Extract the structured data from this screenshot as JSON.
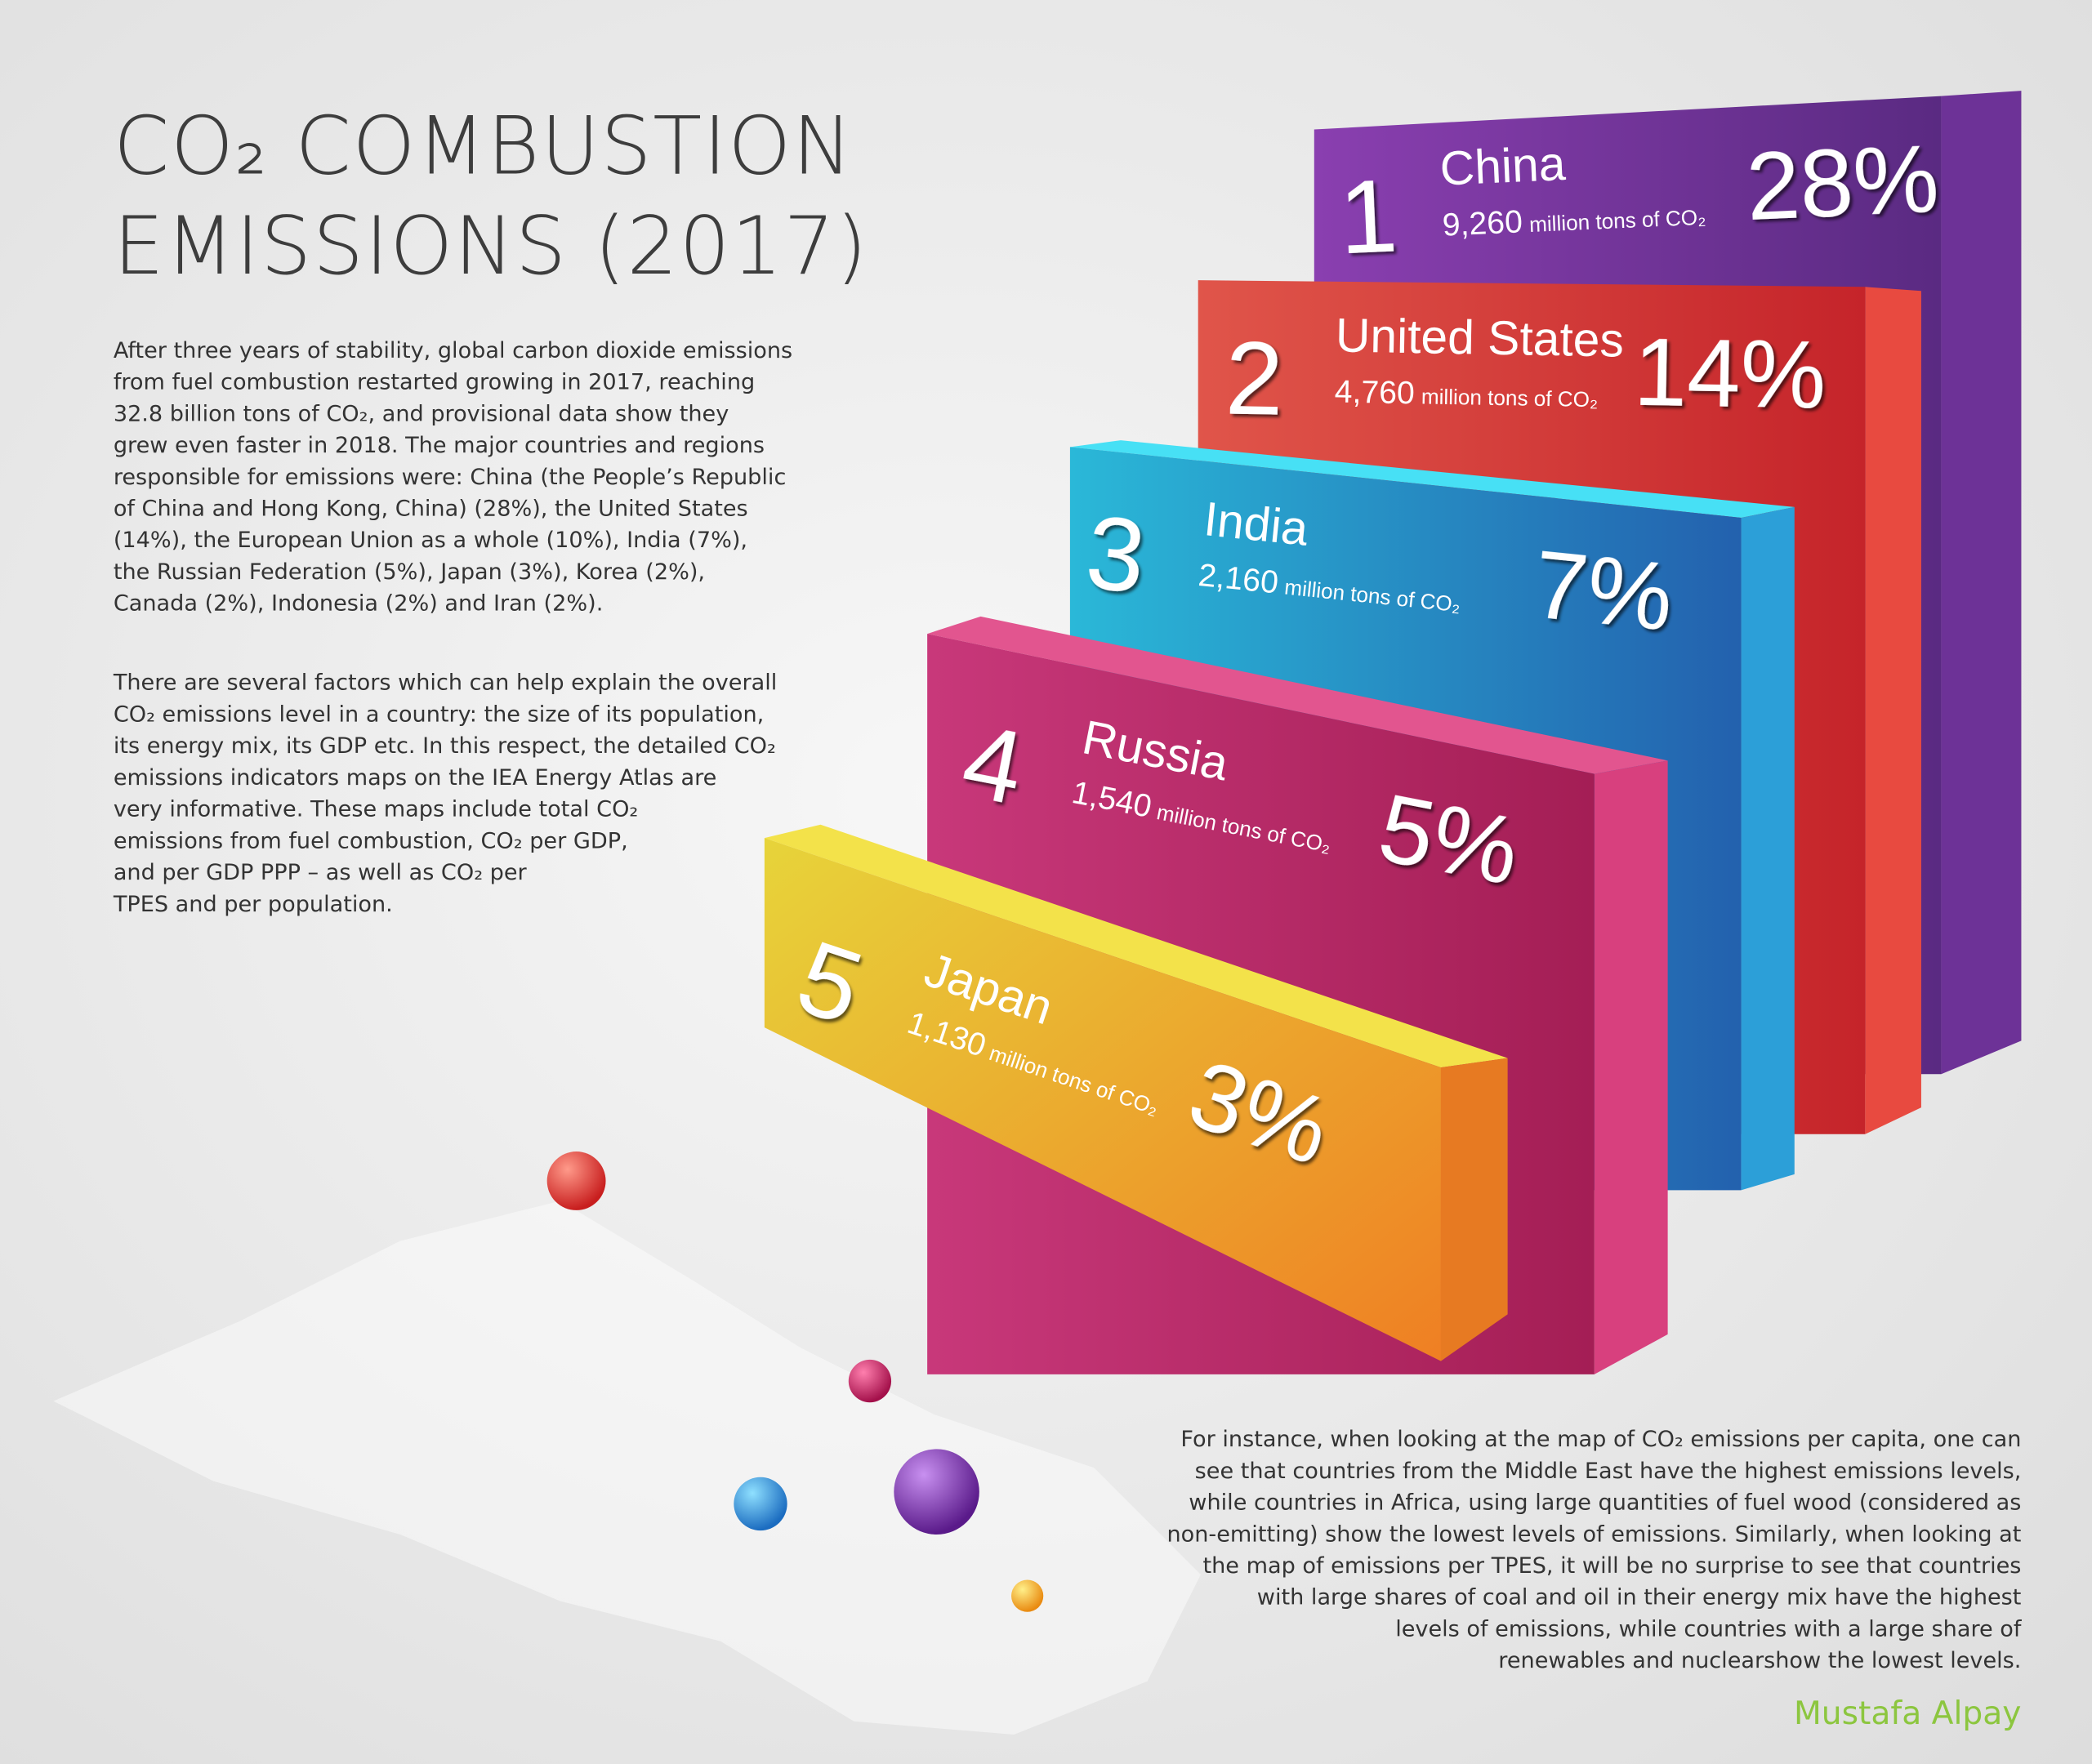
{
  "title": [
    "CO₂ COMBUSTION",
    "EMISSIONS (2017)"
  ],
  "intro": [
    "After three years of stability, global carbon dioxide emissions",
    "from fuel combustion restarted growing in 2017, reaching",
    "32.8 billion tons of CO₂, and provisional data show they",
    "grew even faster in 2018. The major countries and regions",
    "responsible for emissions were: China (the People’s Republic",
    "of China and Hong Kong, China)  (28%), the United States",
    "(14%), the European Union as a whole (10%), India (7%),",
    "the Russian Federation (5%), Japan (3%), Korea (2%),",
    "Canada (2%), Indonesia (2%) and Iran (2%)."
  ],
  "factors": [
    "There are several factors which can help explain the overall",
    "CO₂ emissions level in a country: the size of its population,",
    "its energy mix, its GDP etc. In this respect, the detailed CO₂",
    "emissions indicators maps on the IEA Energy Atlas are",
    "very informative. These maps include total CO₂",
    "emissions from fuel combustion, CO₂ per GDP,",
    "and per GDP PPP – as well as CO₂ per",
    "TPES and per population."
  ],
  "instance": [
    "For instance, when looking at the map of CO₂ emissions per capita, one can",
    "see that countries from the Middle East have the highest  emissions levels,",
    "while countries in Africa, using large quantities of fuel wood (considered as",
    "non-emitting) show the lowest levels of emissions. Similarly, when looking at",
    "the map of emissions per TPES, it will be no surprise to see that countries",
    "with large shares of coal and oil in their energy mix have the highest",
    "levels of emissions, while countries with a large share of",
    "renewables and nuclearshow the lowest levels."
  ],
  "rankings": [
    {
      "rank": "1",
      "country": "China",
      "amount": "9,260",
      "unit": "million tons of CO₂",
      "share": "28%"
    },
    {
      "rank": "2",
      "country": "United States",
      "amount": "4,760",
      "unit": "million tons of CO₂",
      "share": "14%"
    },
    {
      "rank": "3",
      "country": "India",
      "amount": "2,160",
      "unit": "million tons of CO₂",
      "share": "7%"
    },
    {
      "rank": "4",
      "country": "Russia",
      "amount": "1,540",
      "unit": "million tons of CO₂",
      "share": "5%"
    },
    {
      "rank": "5",
      "country": "Japan",
      "amount": "1,130",
      "unit": "million tons of CO₂",
      "share": "3%"
    }
  ],
  "author": "Mustafa Alpay"
}
